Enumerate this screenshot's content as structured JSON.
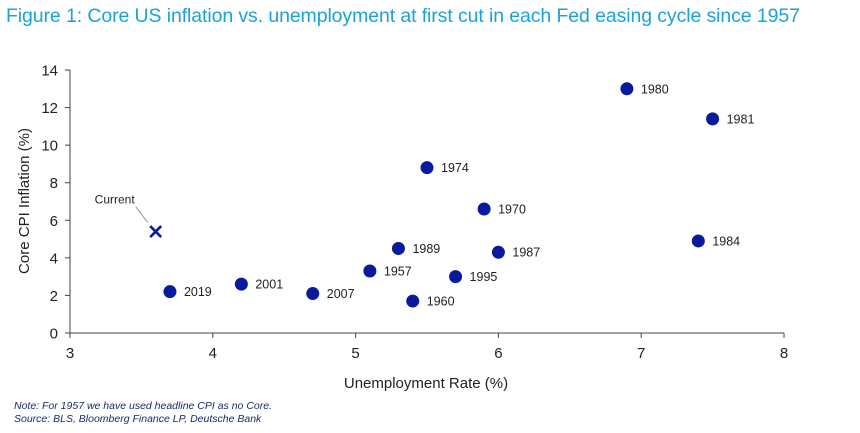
{
  "colors": {
    "title": "#1aa3d8",
    "marker": "#0a1a9c",
    "axis": "#444444",
    "note": "#1a2a6c"
  },
  "chart_data": {
    "type": "scatter",
    "title": "Figure 1: Core US inflation vs. unemployment at first cut in each Fed easing cycle since 1957",
    "xlabel": "Unemployment Rate (%)",
    "ylabel": "Core CPI Inflation (%)",
    "xlim": [
      3,
      8
    ],
    "ylim": [
      0,
      14
    ],
    "xticks": [
      3,
      4,
      5,
      6,
      7,
      8
    ],
    "yticks": [
      0,
      2,
      4,
      6,
      8,
      10,
      12,
      14
    ],
    "grid": false,
    "points": [
      {
        "label": "1980",
        "x": 6.9,
        "y": 13.0
      },
      {
        "label": "1981",
        "x": 7.5,
        "y": 11.4
      },
      {
        "label": "1974",
        "x": 5.5,
        "y": 8.8
      },
      {
        "label": "1970",
        "x": 5.9,
        "y": 6.6
      },
      {
        "label": "1984",
        "x": 7.4,
        "y": 4.9
      },
      {
        "label": "1989",
        "x": 5.3,
        "y": 4.5
      },
      {
        "label": "1987",
        "x": 6.0,
        "y": 4.3
      },
      {
        "label": "1957",
        "x": 5.1,
        "y": 3.3
      },
      {
        "label": "1995",
        "x": 5.7,
        "y": 3.0
      },
      {
        "label": "2001",
        "x": 4.2,
        "y": 2.6
      },
      {
        "label": "2019",
        "x": 3.7,
        "y": 2.2
      },
      {
        "label": "2007",
        "x": 4.7,
        "y": 2.1
      },
      {
        "label": "1960",
        "x": 5.4,
        "y": 1.7
      }
    ],
    "current": {
      "label": "Current",
      "x": 3.6,
      "y": 5.4
    }
  },
  "notes": {
    "note": "Note: For 1957 we have used headline CPI as no Core.",
    "source": "Source: BLS, Bloomberg Finance LP, Deutsche Bank"
  }
}
